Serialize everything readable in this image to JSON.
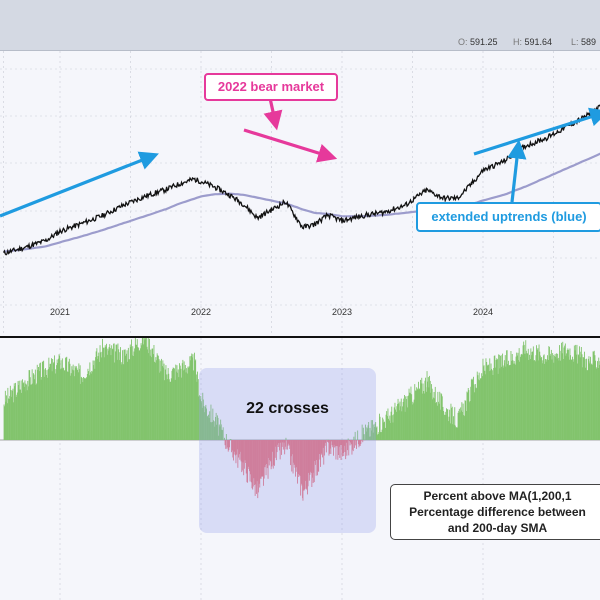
{
  "ohlc": {
    "open_key": "O:",
    "open": "591.25",
    "high_key": "H:",
    "high": "591.64",
    "low_key": "L:",
    "low": "589"
  },
  "x_axis": {
    "ticks": [
      "2021",
      "2022",
      "2023",
      "2024"
    ]
  },
  "annotations": {
    "bear": "2022 bear market",
    "uptrend": "extended uptrends (blue)",
    "crosses": "22 crosses",
    "desc_line1": "Percent above MA(1,200,1",
    "desc_line2": "Percentage difference between",
    "desc_line3": "and 200-day SMA"
  },
  "colors": {
    "price": "#111111",
    "sma": "#9c9ccc",
    "arrow_blue": "#1f9be0",
    "arrow_pink": "#e6399b",
    "positive": "#82c46d",
    "negative": "#e9707a"
  },
  "chart_data": [
    {
      "type": "line",
      "x": [
        2020.6,
        2020.75,
        2020.9,
        2021.0,
        2021.15,
        2021.3,
        2021.45,
        2021.6,
        2021.75,
        2021.85,
        2021.95,
        2022.0,
        2022.1,
        2022.2,
        2022.3,
        2022.4,
        2022.5,
        2022.6,
        2022.72,
        2022.8,
        2022.9,
        2023.0,
        2023.15,
        2023.3,
        2023.45,
        2023.6,
        2023.72,
        2023.82,
        2023.92,
        2024.0,
        2024.15,
        2024.3,
        2024.45,
        2024.6,
        2024.75,
        2024.9
      ],
      "series": [
        {
          "values": [
            327,
            337,
            349,
            365,
            378,
            392,
            410,
            425,
            437,
            447,
            455,
            451,
            441,
            428,
            412,
            388,
            402,
            416,
            372,
            376,
            393,
            383,
            392,
            398,
            410,
            436,
            422,
            422,
            447,
            470,
            486,
            512,
            526,
            546,
            566,
            591
          ]
        },
        {
          "values": [
            330,
            334,
            339,
            346,
            356,
            367,
            379,
            391,
            403,
            413,
            421,
            425,
            429,
            430,
            428,
            423,
            418,
            413,
            403,
            397,
            395,
            391,
            391,
            393,
            397,
            401,
            406,
            409,
            412,
            418,
            428,
            442,
            458,
            474,
            490,
            506
          ]
        }
      ]
    },
    {
      "type": "area",
      "x": [
        2020.6,
        2020.75,
        2020.9,
        2021.0,
        2021.15,
        2021.3,
        2021.45,
        2021.6,
        2021.75,
        2021.85,
        2021.95,
        2022.0,
        2022.1,
        2022.2,
        2022.3,
        2022.4,
        2022.5,
        2022.6,
        2022.72,
        2022.8,
        2022.9,
        2023.0,
        2023.15,
        2023.3,
        2023.45,
        2023.6,
        2023.72,
        2023.82,
        2023.92,
        2024.0,
        2024.15,
        2024.3,
        2024.45,
        2024.6,
        2024.75,
        2024.9
      ],
      "series": [
        {
          "values": [
            6,
            9,
            11,
            12,
            10,
            14,
            13,
            16,
            10,
            11,
            12,
            6,
            3,
            -1,
            -4,
            -8,
            -3,
            -1,
            -8,
            -5,
            -1,
            -2,
            1,
            3,
            6,
            9,
            5,
            3,
            8,
            11,
            12,
            14,
            13,
            14,
            12,
            13
          ]
        }
      ]
    }
  ]
}
